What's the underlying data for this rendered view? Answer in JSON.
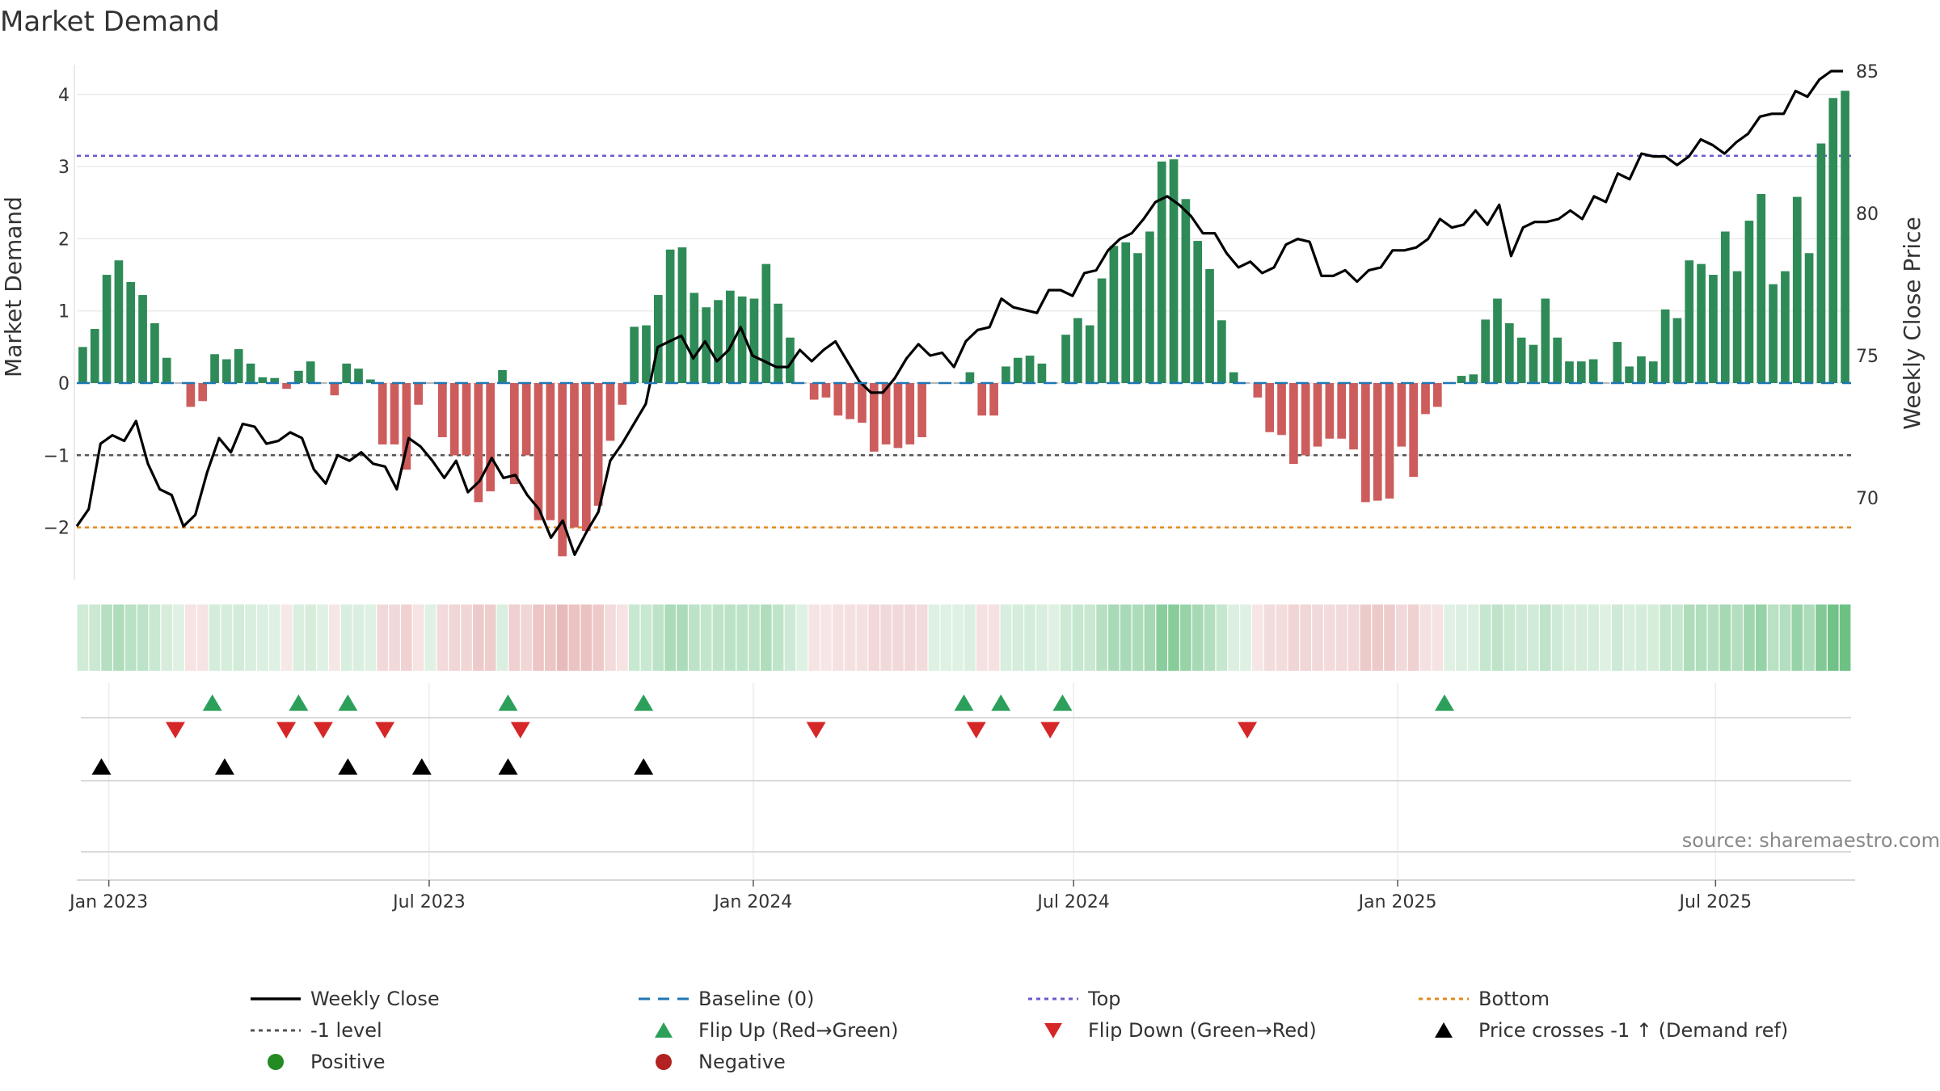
{
  "chart_data": {
    "type": "bar",
    "title": "Market Demand",
    "ylabel": "Market Demand",
    "y2label": "Weekly Close Price",
    "ylim": [
      -2.75,
      4.5
    ],
    "y2lim": [
      67.4,
      85.4
    ],
    "yticks": [
      "−2",
      "−1",
      "0",
      "1",
      "2",
      "3",
      "4"
    ],
    "yticks_values": [
      -2,
      -1,
      0,
      1,
      2,
      3,
      4
    ],
    "y2ticks": [
      "70",
      "75",
      "80",
      "85"
    ],
    "y2ticks_values": [
      70,
      75,
      80,
      85
    ],
    "x_range_weeks": [
      -1,
      143
    ],
    "xticks": [
      {
        "label": "Jan 2023",
        "week": 1.6
      },
      {
        "label": "Jul 2023",
        "week": 27.6
      },
      {
        "label": "Jan 2024",
        "week": 53.9
      },
      {
        "label": "Jul 2024",
        "week": 79.9
      },
      {
        "label": "Jan 2025",
        "week": 106.2
      },
      {
        "label": "Jul 2025",
        "week": 132.0
      }
    ],
    "reference_lines": {
      "top": 3.15,
      "minus_one": -1,
      "bottom": -2,
      "baseline": 0
    },
    "demand": [
      0.5,
      0.75,
      1.5,
      1.7,
      1.4,
      1.22,
      0.83,
      0.35,
      0,
      -0.33,
      -0.25,
      0.4,
      0.33,
      0.47,
      0.27,
      0.08,
      0.07,
      -0.08,
      0.17,
      0.3,
      0,
      -0.17,
      0.27,
      0.2,
      0.05,
      -0.85,
      -0.85,
      -1.2,
      -0.3,
      0,
      -0.75,
      -1.0,
      -1.0,
      -1.65,
      -1.5,
      0.18,
      -1.4,
      -1.0,
      -1.9,
      -1.9,
      -2.4,
      -2.0,
      -2.05,
      -1.7,
      -0.8,
      -0.3,
      0.78,
      0.8,
      1.22,
      1.85,
      1.88,
      1.25,
      1.05,
      1.15,
      1.28,
      1.2,
      1.17,
      1.65,
      1.1,
      0.63,
      0,
      -0.23,
      -0.2,
      -0.45,
      -0.5,
      -0.55,
      -0.95,
      -0.85,
      -0.9,
      -0.85,
      -0.75,
      0,
      0,
      0,
      0.15,
      -0.45,
      -0.45,
      0.23,
      0.35,
      0.38,
      0.27,
      0,
      0.67,
      0.9,
      0.8,
      1.45,
      1.9,
      1.95,
      1.8,
      2.1,
      3.07,
      3.1,
      2.55,
      1.97,
      1.58,
      0.87,
      0.15,
      0,
      -0.2,
      -0.68,
      -0.72,
      -1.12,
      -1.0,
      -0.88,
      -0.77,
      -0.77,
      -0.92,
      -1.65,
      -1.63,
      -1.6,
      -0.88,
      -1.3,
      -0.43,
      -0.33,
      0,
      0.1,
      0.12,
      0.88,
      1.17,
      0.83,
      0.63,
      0.53,
      1.17,
      0.63,
      0.3,
      0.3,
      0.33,
      0,
      0.57,
      0.23,
      0.37,
      0.3,
      1.02,
      0.9,
      1.7,
      1.65,
      1.5,
      2.1,
      1.55,
      2.25,
      2.62,
      1.37,
      1.55,
      2.58,
      1.8,
      3.32,
      3.95,
      4.05
    ],
    "weekly_close": [
      69.0,
      69.6,
      71.9,
      72.2,
      72.0,
      72.7,
      71.2,
      70.3,
      70.1,
      69.0,
      69.4,
      70.9,
      72.1,
      71.6,
      72.6,
      72.5,
      71.9,
      72.0,
      72.3,
      72.1,
      71.0,
      70.5,
      71.5,
      71.3,
      71.6,
      71.2,
      71.1,
      70.3,
      72.1,
      71.8,
      71.3,
      70.7,
      71.3,
      70.2,
      70.6,
      71.4,
      70.7,
      70.8,
      70.1,
      69.6,
      68.6,
      69.2,
      68.0,
      68.8,
      69.5,
      71.3,
      71.9,
      72.6,
      73.3,
      75.3,
      75.5,
      75.7,
      74.9,
      75.5,
      74.8,
      75.2,
      76.0,
      75.0,
      74.8,
      74.6,
      74.6,
      75.2,
      74.8,
      75.2,
      75.5,
      74.8,
      74.1,
      73.7,
      73.7,
      74.2,
      74.9,
      75.4,
      75.0,
      75.1,
      74.6,
      75.5,
      75.9,
      76.0,
      77.0,
      76.7,
      76.6,
      76.5,
      77.3,
      77.3,
      77.1,
      77.9,
      78.0,
      78.7,
      79.1,
      79.3,
      79.8,
      80.4,
      80.6,
      80.3,
      79.9,
      79.3,
      79.3,
      78.6,
      78.1,
      78.3,
      77.9,
      78.1,
      78.9,
      79.1,
      79.0,
      77.8,
      77.8,
      78.0,
      77.6,
      78.0,
      78.1,
      78.7,
      78.7,
      78.8,
      79.1,
      79.8,
      79.5,
      79.6,
      80.1,
      79.6,
      80.3,
      78.5,
      79.5,
      79.7,
      79.7,
      79.8,
      80.1,
      79.8,
      80.6,
      80.4,
      81.4,
      81.2,
      82.1,
      82.0,
      82.0,
      81.7,
      82.0,
      82.6,
      82.4,
      82.1,
      82.5,
      82.8,
      83.4,
      83.5,
      83.5,
      84.3,
      84.1,
      84.7,
      85.0,
      85.0
    ],
    "flip_up_weeks": [
      10,
      17,
      21,
      34,
      45,
      71,
      74,
      79,
      110
    ],
    "flip_down_weeks": [
      7,
      16,
      19,
      24,
      35,
      59,
      72,
      78,
      94
    ],
    "price_cross_weeks": [
      1,
      11,
      21,
      27,
      34,
      45
    ],
    "source": "source: sharemaestro.com",
    "legend": [
      {
        "label": "Weekly Close",
        "kind": "line",
        "color": "#000000"
      },
      {
        "label": "Baseline (0)",
        "kind": "dash",
        "color": "#1f77b4"
      },
      {
        "label": "Top",
        "kind": "dot",
        "color": "#6a5acd"
      },
      {
        "label": "Bottom",
        "kind": "dot",
        "color": "#e08a1e"
      },
      {
        "label": "-1 level",
        "kind": "dot",
        "color": "#555555"
      },
      {
        "label": "Flip Up (Red→Green)",
        "kind": "tri-up",
        "color": "#2ca05a"
      },
      {
        "label": "Flip Down (Green→Red)",
        "kind": "tri-down",
        "color": "#d62728"
      },
      {
        "label": "Price crosses -1 ↑ (Demand ref)",
        "kind": "tri-up",
        "color": "#000000"
      },
      {
        "label": "Positive",
        "kind": "circle",
        "color": "#228b22"
      },
      {
        "label": "Negative",
        "kind": "circle",
        "color": "#b22222"
      }
    ]
  },
  "colors": {
    "positive_bar": "#2e8b57",
    "negative_bar": "#cd5c5c",
    "price_line": "#000000",
    "baseline": "#1f77b4",
    "top_line": "#6a5acd",
    "bottom_line": "#e08a1e",
    "minus_one_line": "#555555",
    "flip_up": "#2ca05a",
    "flip_down": "#d62728",
    "cross": "#000000",
    "heat_pos": "#3cab5a",
    "heat_neg": "#c85a5a"
  }
}
